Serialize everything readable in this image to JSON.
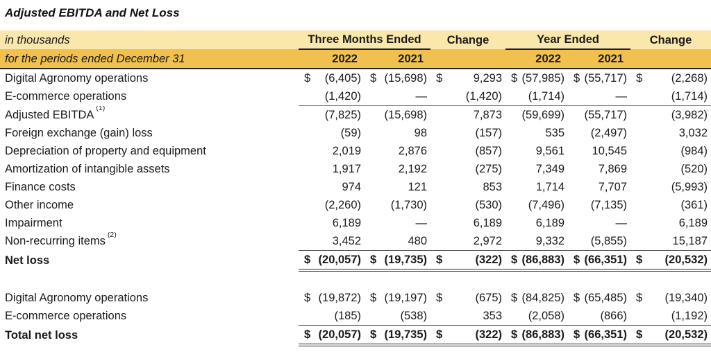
{
  "title": "Adjusted EBITDA and Net Loss",
  "colors": {
    "band_light": "#FAE7AC",
    "band_gold": "#F0C14F",
    "rule_thin": "#7a7a7a",
    "rule_dark": "#262626",
    "text": "#1a1a1a"
  },
  "table": {
    "currency_symbol": "$",
    "header": {
      "caption_row1": "in thousands",
      "caption_row2": "for the periods ended December 31",
      "group_three_months": "Three Months Ended",
      "group_change_1": "Change",
      "group_year_ended": "Year Ended",
      "group_change_2": "Change",
      "years": [
        "2022",
        "2021",
        "2022",
        "2021"
      ]
    },
    "columns": [
      "Three Months Ended 2022",
      "Three Months Ended 2021",
      "Change",
      "Year Ended 2022",
      "Year Ended 2021",
      "Change"
    ],
    "rows": [
      {
        "label": "Digital Agronomy operations",
        "dollar": true,
        "values": [
          "(6,405)",
          "(15,698)",
          "9,293",
          "(57,985)",
          "(55,717)",
          "(2,268)"
        ]
      },
      {
        "label": "E-commerce operations",
        "cls": "rule",
        "values": [
          "(1,420)",
          "—",
          "(1,420)",
          "(1,714)",
          "—",
          "(1,714)"
        ]
      },
      {
        "label": "Adjusted EBITDA",
        "sup": "(1)",
        "values": [
          "(7,825)",
          "(15,698)",
          "7,873",
          "(59,699)",
          "(55,717)",
          "(3,982)"
        ]
      },
      {
        "label": "Foreign exchange (gain) loss",
        "values": [
          "(59)",
          "98",
          "(157)",
          "535",
          "(2,497)",
          "3,032"
        ]
      },
      {
        "label": "Depreciation of property and equipment",
        "values": [
          "2,019",
          "2,876",
          "(857)",
          "9,561",
          "10,545",
          "(984)"
        ]
      },
      {
        "label": "Amortization of intangible assets",
        "values": [
          "1,917",
          "2,192",
          "(275)",
          "7,349",
          "7,869",
          "(520)"
        ]
      },
      {
        "label": "Finance costs",
        "values": [
          "974",
          "121",
          "853",
          "1,714",
          "7,707",
          "(5,993)"
        ]
      },
      {
        "label": "Other income",
        "values": [
          "(2,260)",
          "(1,730)",
          "(530)",
          "(7,496)",
          "(7,135)",
          "(361)"
        ]
      },
      {
        "label": "Impairment",
        "values": [
          "6,189",
          "—",
          "6,189",
          "6,189",
          "—",
          "6,189"
        ]
      },
      {
        "label": "Non-recurring items",
        "sup": "(2)",
        "values": [
          "3,452",
          "480",
          "2,972",
          "9,332",
          "(5,855)",
          "15,187"
        ]
      },
      {
        "label": "Net loss",
        "bold": true,
        "dollar": true,
        "cls": "total",
        "values": [
          "(20,057)",
          "(19,735)",
          "(322)",
          "(86,883)",
          "(66,351)",
          "(20,532)"
        ]
      },
      {
        "spacer": true
      },
      {
        "label": "Digital Agronomy operations",
        "dollar": true,
        "values": [
          "(19,872)",
          "(19,197)",
          "(675)",
          "(84,825)",
          "(65,485)",
          "(19,340)"
        ]
      },
      {
        "label": "E-commerce operations",
        "values": [
          "(185)",
          "(538)",
          "353",
          "(2,058)",
          "(866)",
          "(1,192)"
        ]
      },
      {
        "label": "Total net loss",
        "bold": true,
        "dollar": true,
        "cls": "total",
        "values": [
          "(20,057)",
          "(19,735)",
          "(322)",
          "(86,883)",
          "(66,351)",
          "(20,532)"
        ]
      }
    ]
  }
}
